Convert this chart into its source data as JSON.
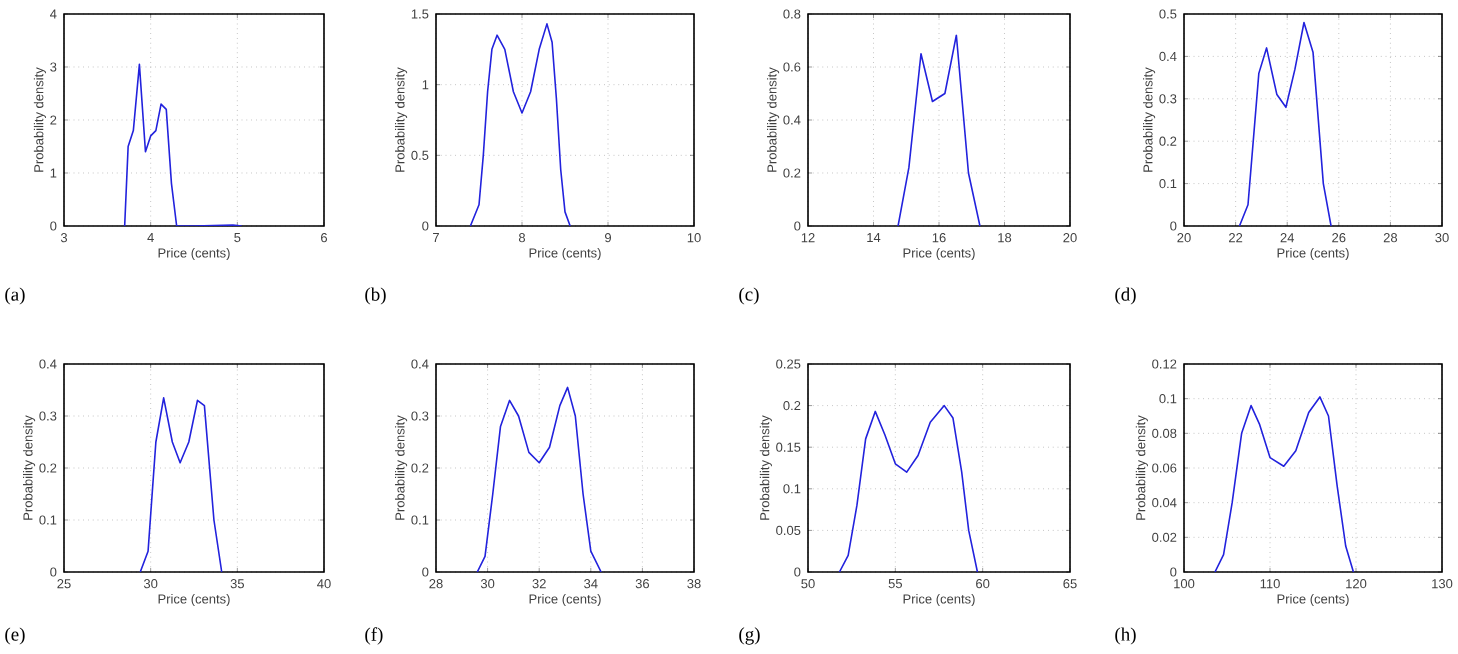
{
  "chart_data": [
    {
      "type": "line",
      "annotations": [
        "(a)"
      ],
      "xlabel": "Price (cents)",
      "ylabel": "Probability density",
      "color": "#2222dd",
      "grid": true,
      "xlim": [
        3,
        6
      ],
      "xticks": [
        3,
        4,
        5,
        6
      ],
      "ylim": [
        0,
        4
      ],
      "yticks": [
        0,
        1,
        2,
        3,
        4
      ],
      "x": [
        3.7,
        3.74,
        3.8,
        3.87,
        3.94,
        4.0,
        4.06,
        4.12,
        4.18,
        4.24,
        4.3,
        4.5,
        4.95,
        5.05
      ],
      "values": [
        0,
        1.5,
        1.8,
        3.05,
        1.4,
        1.7,
        1.8,
        2.3,
        2.2,
        0.8,
        0,
        0,
        0.02,
        0
      ]
    },
    {
      "type": "line",
      "annotations": [
        "(b)"
      ],
      "xlabel": "Price (cents)",
      "ylabel": "Probability density",
      "color": "#2222dd",
      "grid": true,
      "xlim": [
        7,
        10
      ],
      "xticks": [
        7,
        8,
        9,
        10
      ],
      "ylim": [
        0,
        1.5
      ],
      "yticks": [
        0,
        0.5,
        1,
        1.5
      ],
      "x": [
        7.4,
        7.5,
        7.55,
        7.6,
        7.65,
        7.71,
        7.8,
        7.9,
        8.0,
        8.1,
        8.2,
        8.29,
        8.35,
        8.4,
        8.45,
        8.5,
        8.56
      ],
      "values": [
        0,
        0.15,
        0.5,
        0.95,
        1.25,
        1.35,
        1.25,
        0.95,
        0.8,
        0.95,
        1.25,
        1.43,
        1.3,
        0.9,
        0.4,
        0.1,
        0
      ]
    },
    {
      "type": "line",
      "annotations": [
        "(c)"
      ],
      "xlabel": "Price (cents)",
      "ylabel": "Probability density",
      "color": "#2222dd",
      "grid": true,
      "xlim": [
        12,
        20
      ],
      "xticks": [
        12,
        14,
        16,
        18,
        20
      ],
      "ylim": [
        0,
        0.8
      ],
      "yticks": [
        0,
        0.2,
        0.4,
        0.6,
        0.8
      ],
      "x": [
        14.75,
        15.08,
        15.45,
        15.8,
        16.18,
        16.53,
        16.9,
        17.25
      ],
      "values": [
        0,
        0.22,
        0.65,
        0.47,
        0.5,
        0.72,
        0.2,
        0
      ]
    },
    {
      "type": "line",
      "annotations": [
        "(d)"
      ],
      "xlabel": "Price (cents)",
      "ylabel": "Probability density",
      "color": "#2222dd",
      "grid": true,
      "xlim": [
        20,
        30
      ],
      "xticks": [
        20,
        22,
        24,
        26,
        28,
        30
      ],
      "ylim": [
        0,
        0.5
      ],
      "yticks": [
        0,
        0.1,
        0.2,
        0.3,
        0.4,
        0.5
      ],
      "x": [
        22.15,
        22.48,
        22.9,
        23.2,
        23.6,
        23.95,
        24.3,
        24.65,
        25.0,
        25.4,
        25.7
      ],
      "values": [
        0,
        0.05,
        0.36,
        0.42,
        0.31,
        0.28,
        0.37,
        0.48,
        0.41,
        0.1,
        0
      ]
    },
    {
      "type": "line",
      "annotations": [
        "(e)"
      ],
      "xlabel": "Price (cents)",
      "ylabel": "Probability density",
      "color": "#2222dd",
      "grid": true,
      "xlim": [
        25,
        40
      ],
      "xticks": [
        25,
        30,
        35,
        40
      ],
      "ylim": [
        0,
        0.4
      ],
      "yticks": [
        0,
        0.1,
        0.2,
        0.3,
        0.4
      ],
      "x": [
        29.4,
        29.85,
        30.3,
        30.75,
        31.25,
        31.7,
        32.2,
        32.7,
        33.1,
        33.65,
        34.1
      ],
      "values": [
        0,
        0.04,
        0.25,
        0.335,
        0.25,
        0.21,
        0.25,
        0.33,
        0.32,
        0.1,
        0
      ]
    },
    {
      "type": "line",
      "annotations": [
        "(f)"
      ],
      "xlabel": "Price (cents)",
      "ylabel": "Probability density",
      "color": "#2222dd",
      "grid": true,
      "xlim": [
        28,
        38
      ],
      "xticks": [
        28,
        30,
        32,
        34,
        36,
        38
      ],
      "ylim": [
        0,
        0.4
      ],
      "yticks": [
        0,
        0.1,
        0.2,
        0.3,
        0.4
      ],
      "x": [
        29.6,
        29.9,
        30.2,
        30.5,
        30.85,
        31.2,
        31.6,
        32.0,
        32.4,
        32.8,
        33.1,
        33.4,
        33.7,
        34.0,
        34.4
      ],
      "values": [
        0,
        0.03,
        0.15,
        0.28,
        0.33,
        0.3,
        0.23,
        0.21,
        0.24,
        0.32,
        0.355,
        0.3,
        0.15,
        0.04,
        0
      ]
    },
    {
      "type": "line",
      "annotations": [
        "(g)"
      ],
      "xlabel": "Price (cents)",
      "ylabel": "Probability density",
      "color": "#2222dd",
      "grid": true,
      "xlim": [
        50,
        65
      ],
      "xticks": [
        50,
        55,
        60,
        65
      ],
      "ylim": [
        0,
        0.25
      ],
      "yticks": [
        0,
        0.05,
        0.1,
        0.15,
        0.2,
        0.25
      ],
      "x": [
        51.8,
        52.3,
        52.8,
        53.3,
        53.85,
        54.4,
        55,
        55.65,
        56.3,
        57,
        57.8,
        58.3,
        58.8,
        59.2,
        59.7
      ],
      "values": [
        0,
        0.02,
        0.08,
        0.16,
        0.193,
        0.165,
        0.13,
        0.12,
        0.14,
        0.18,
        0.2,
        0.185,
        0.12,
        0.05,
        0
      ]
    },
    {
      "type": "line",
      "annotations": [
        "(h)"
      ],
      "xlabel": "Price (cents)",
      "ylabel": "Probability density",
      "color": "#2222dd",
      "grid": true,
      "xlim": [
        100,
        130
      ],
      "xticks": [
        100,
        110,
        120,
        130
      ],
      "ylim": [
        0,
        0.12
      ],
      "yticks": [
        0,
        0.02,
        0.04,
        0.06,
        0.08,
        0.1,
        0.12
      ],
      "x": [
        103.6,
        104.6,
        105.6,
        106.7,
        107.8,
        108.8,
        110,
        111.6,
        113,
        114.5,
        115.8,
        116.8,
        117.8,
        118.8,
        119.7
      ],
      "values": [
        0,
        0.01,
        0.04,
        0.08,
        0.096,
        0.085,
        0.066,
        0.061,
        0.07,
        0.092,
        0.101,
        0.09,
        0.05,
        0.015,
        0
      ]
    }
  ]
}
